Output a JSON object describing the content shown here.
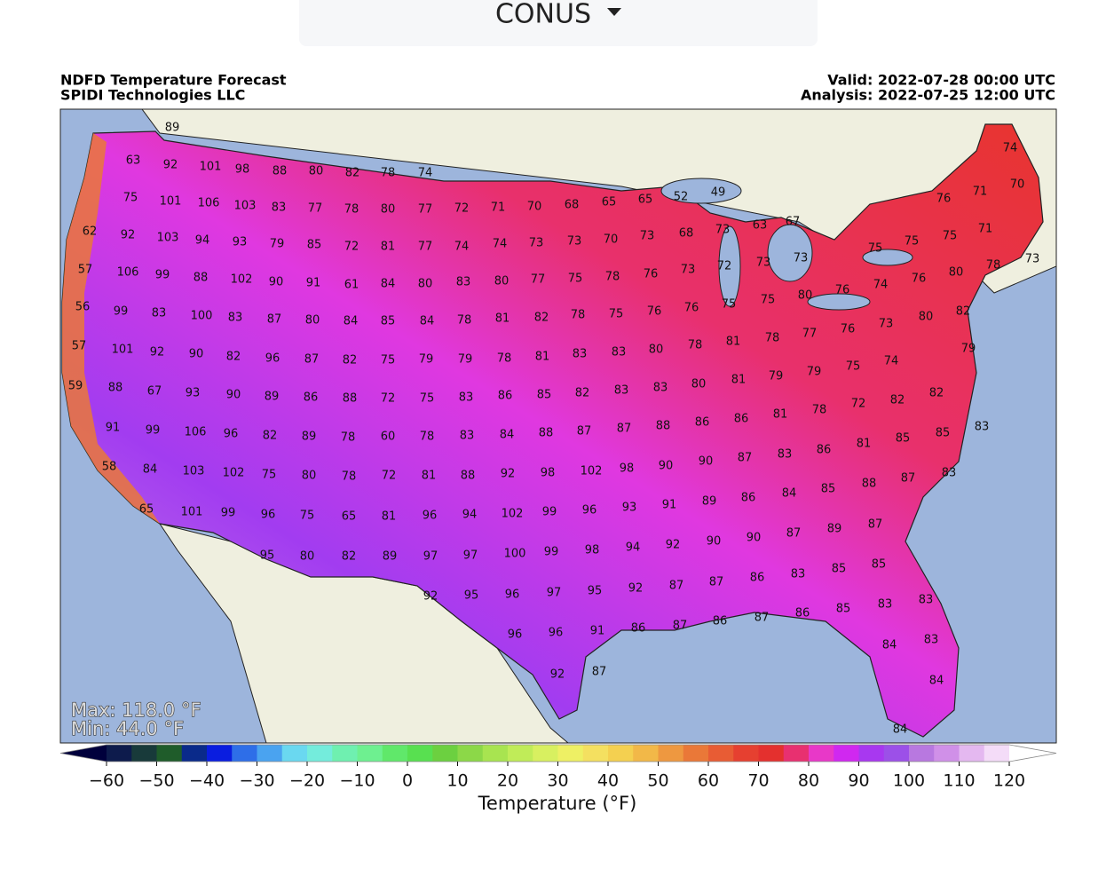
{
  "dropdown": {
    "label": "CONUS"
  },
  "header": {
    "title": "NDFD Temperature Forecast",
    "source": "SPIDI Technologies LLC",
    "valid": "Valid: 2022-07-28 00:00 UTC",
    "analysis": "Analysis: 2022-07-25 12:00 UTC"
  },
  "map": {
    "labels": [
      89,
      63,
      92,
      101,
      98,
      88,
      80,
      82,
      78,
      74,
      75,
      101,
      106,
      103,
      83,
      77,
      78,
      80,
      77,
      72,
      71,
      70,
      68,
      65,
      65,
      52,
      49,
      76,
      71,
      74,
      70,
      62,
      92,
      103,
      94,
      93,
      79,
      85,
      72,
      81,
      77,
      74,
      74,
      73,
      73,
      70,
      73,
      68,
      73,
      63,
      67,
      75,
      75,
      75,
      71,
      57,
      106,
      99,
      88,
      102,
      90,
      91,
      61,
      84,
      80,
      83,
      80,
      77,
      75,
      78,
      76,
      73,
      72,
      73,
      73,
      74,
      76,
      80,
      78,
      73,
      56,
      99,
      83,
      100,
      83,
      87,
      80,
      84,
      85,
      84,
      78,
      81,
      82,
      78,
      75,
      76,
      76,
      75,
      75,
      80,
      76,
      73,
      80,
      82,
      79,
      57,
      101,
      92,
      90,
      82,
      96,
      87,
      82,
      75,
      79,
      79,
      78,
      81,
      83,
      83,
      80,
      78,
      81,
      78,
      77,
      76,
      75,
      74,
      82,
      59,
      88,
      67,
      93,
      90,
      89,
      86,
      88,
      72,
      75,
      83,
      86,
      85,
      82,
      83,
      83,
      80,
      81,
      79,
      79,
      78,
      72,
      82,
      91,
      99,
      106,
      96,
      82,
      89,
      78,
      60,
      78,
      83,
      84,
      88,
      87,
      87,
      88,
      86,
      86,
      81,
      81,
      85,
      85,
      83,
      58,
      84,
      103,
      102,
      75,
      80,
      78,
      72,
      81,
      88,
      92,
      98,
      102,
      98,
      90,
      90,
      87,
      83,
      86,
      88,
      87,
      83,
      65,
      101,
      99,
      96,
      75,
      65,
      81,
      96,
      94,
      102,
      99,
      96,
      93,
      91,
      89,
      86,
      84,
      85,
      87,
      89,
      87,
      90,
      90,
      92,
      94,
      98,
      99,
      100,
      97,
      97,
      89,
      82,
      80,
      95,
      85,
      85,
      83,
      86,
      87,
      87,
      92,
      95,
      97,
      96,
      95,
      92,
      83,
      83,
      85,
      86,
      87,
      86,
      87,
      86,
      91,
      96,
      96,
      83,
      84,
      87,
      92,
      84,
      84
    ],
    "max": "Max: 118.0 °F",
    "min": "Min: 44.0 °F"
  },
  "colorbar": {
    "label": "Temperature (°F)",
    "lim": [
      -60,
      120
    ],
    "ticks": [
      {
        "value": -60,
        "label": "−60"
      },
      {
        "value": -50,
        "label": "−50"
      },
      {
        "value": -40,
        "label": "−40"
      },
      {
        "value": -30,
        "label": "−30"
      },
      {
        "value": -20,
        "label": "−20"
      },
      {
        "value": -10,
        "label": "−10"
      },
      0,
      10,
      20,
      30,
      40,
      50,
      60,
      70,
      80,
      90,
      100,
      110,
      120
    ],
    "colors": [
      "#0d1b4c",
      "#183a3a",
      "#1f5c2a",
      "#0a2a8a",
      "#0a1de0",
      "#2e6ee8",
      "#4aa3f0",
      "#6ad8f0",
      "#74ecdc",
      "#6ff0b0",
      "#6ef090",
      "#60e86a",
      "#58e050",
      "#6cd040",
      "#8cd848",
      "#a8e450",
      "#c0ec58",
      "#d8f060",
      "#eef064",
      "#f4e060",
      "#f4d050",
      "#f2b848",
      "#ee9840",
      "#ea7838",
      "#e85c34",
      "#e64030",
      "#e4302e",
      "#e83070",
      "#e838c8",
      "#d028f0",
      "#a838f0",
      "#9c50e8",
      "#b878e0",
      "#d090e8",
      "#e4b8f0",
      "#f4dcf8"
    ],
    "under": "#00003c",
    "over": "#ffffff"
  }
}
